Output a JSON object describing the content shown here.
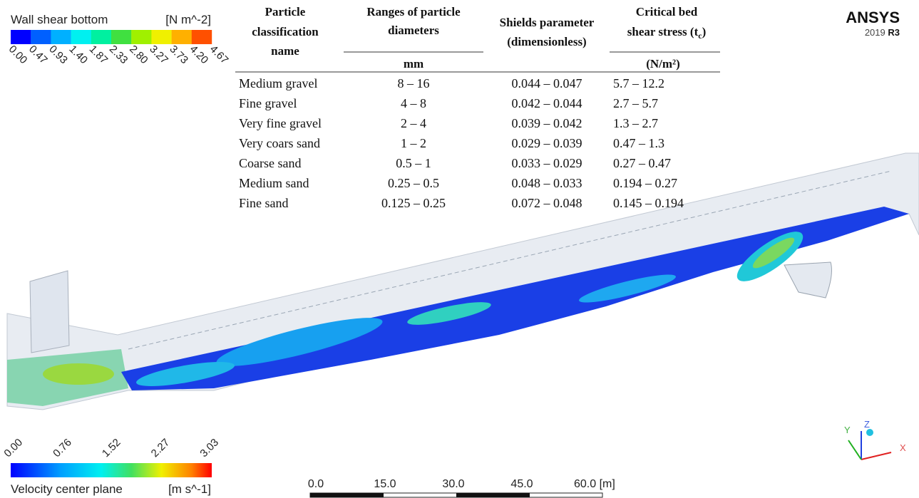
{
  "wall_shear_legend": {
    "title": "Wall shear bottom",
    "unit": "[N m^-2]",
    "labels": [
      "0.00",
      "0.47",
      "0.93",
      "1.40",
      "1.87",
      "2.33",
      "2.80",
      "3.27",
      "3.73",
      "4.20",
      "4.67"
    ]
  },
  "table": {
    "headers": [
      {
        "lines": [
          "Particle",
          "classification",
          "name"
        ]
      },
      {
        "lines": [
          "Ranges of particle",
          "diameters"
        ]
      },
      {
        "lines": [
          "Shields parameter",
          "(dimensionless)"
        ]
      },
      {
        "lines": [
          "Critical bed",
          "shear stress (t"
        ],
        "subscript": "c",
        "suffix": ")"
      }
    ],
    "units": [
      "mm",
      "(N/m²)"
    ],
    "rows": [
      [
        "Medium gravel",
        "8 – 16",
        "0.044 – 0.047",
        "5.7 – 12.2"
      ],
      [
        "Fine gravel",
        "4 – 8",
        "0.042 – 0.044",
        "2.7 – 5.7"
      ],
      [
        "Very fine gravel",
        "2 – 4",
        "0.039 – 0.042",
        "1.3 – 2.7"
      ],
      [
        "Very coars sand",
        "1 – 2",
        "0.029 – 0.039",
        "0.47 – 1.3"
      ],
      [
        "Coarse sand",
        "0.5 – 1",
        "0.033 – 0.029",
        "0.27 – 0.47"
      ],
      [
        "Medium sand",
        "0.25 – 0.5",
        "0.048 – 0.033",
        "0.194 – 0.27"
      ],
      [
        "Fine sand",
        "0.125 – 0.25",
        "0.072 – 0.048",
        "0.145 – 0.194"
      ]
    ]
  },
  "logo": {
    "name": "ANSYS",
    "version": "2019",
    "release": "R3"
  },
  "velocity_legend": {
    "title": "Velocity center plane",
    "unit": "[m s^-1]",
    "labels": [
      "0.00",
      "0.76",
      "1.52",
      "2.27",
      "3.03"
    ]
  },
  "scale_bar": {
    "labels": [
      "0.0",
      "15.0",
      "30.0",
      "45.0",
      "60.0 [m]"
    ]
  },
  "axes": {
    "y": "Y",
    "z": "Z",
    "x": "X"
  }
}
